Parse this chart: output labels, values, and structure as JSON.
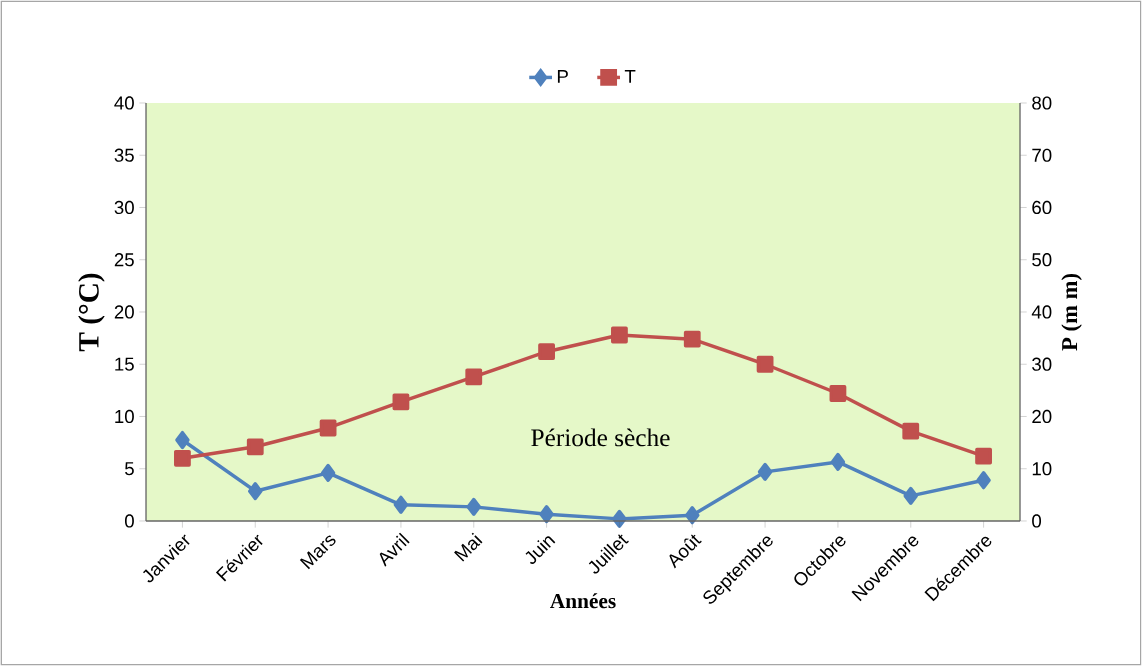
{
  "chart_data": {
    "type": "line",
    "xlabel": "Années",
    "ylabel": "T (°C)",
    "y2label": "P (m m)",
    "categories": [
      "Janvier",
      "Février",
      "Mars",
      "Avril",
      "Mai",
      "Juin",
      "Juillet",
      "Août",
      "Septembre",
      "Octobre",
      "Novembre",
      "Décembre"
    ],
    "series": [
      {
        "name": "P",
        "color": "#4f81bd",
        "marker": "diamond",
        "axis": "y2",
        "values": [
          15.5,
          5.7,
          9.2,
          3.1,
          2.7,
          1.3,
          0.4,
          1.1,
          9.4,
          11.3,
          4.8,
          7.8
        ]
      },
      {
        "name": "T",
        "color": "#c0504d",
        "marker": "square",
        "values": [
          6.0,
          7.1,
          8.9,
          11.4,
          13.8,
          16.2,
          17.8,
          17.4,
          15.0,
          12.2,
          8.6,
          6.2
        ]
      }
    ],
    "ylim": [
      0,
      40
    ],
    "yticks": [
      0,
      5,
      10,
      15,
      20,
      25,
      30,
      35,
      40
    ],
    "y2lim": [
      0,
      80
    ],
    "y2ticks": [
      0,
      10,
      20,
      30,
      40,
      50,
      60,
      70,
      80
    ],
    "legend": "top",
    "grid": false,
    "line_style": "solid",
    "annotations": [
      "Période sèche"
    ]
  }
}
